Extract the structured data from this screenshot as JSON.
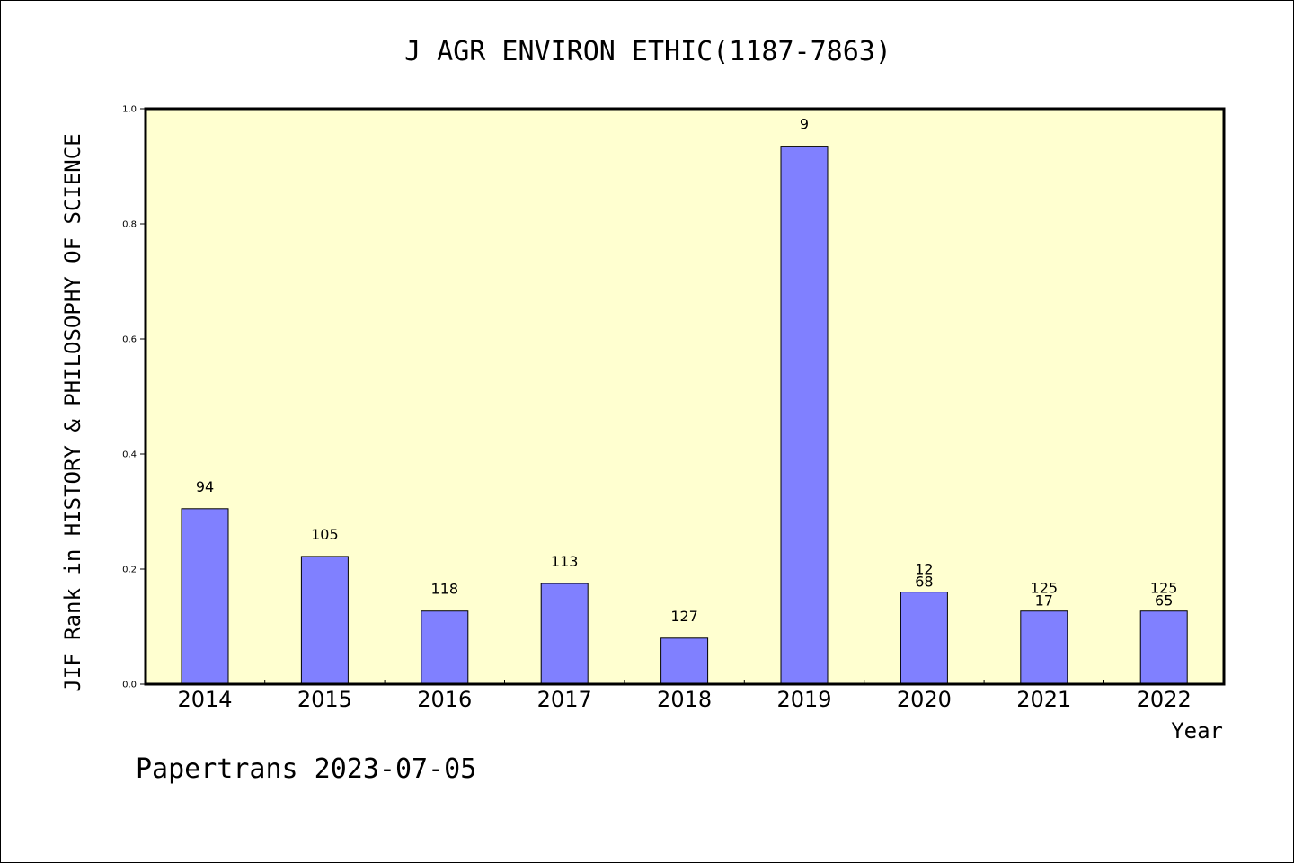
{
  "chart_data": {
    "type": "bar",
    "title": "J AGR ENVIRON ETHIC(1187-7863)",
    "xlabel": "Year",
    "ylabel": "JIF Rank in HISTORY & PHILOSOPHY OF SCIENCE",
    "footer": "Papertrans 2023-07-05",
    "ylim": [
      0,
      1.0
    ],
    "yticks": [
      "0.0",
      "0.2",
      "0.4",
      "0.6",
      "0.8",
      "1.0"
    ],
    "categories": [
      "2014",
      "2015",
      "2016",
      "2017",
      "2018",
      "2019",
      "2020",
      "2021",
      "2022"
    ],
    "values": [
      0.305,
      0.222,
      0.127,
      0.175,
      0.08,
      0.935,
      0.16,
      0.127,
      0.127
    ],
    "bar_labels": [
      [
        "94"
      ],
      [
        "105"
      ],
      [
        "118"
      ],
      [
        "113"
      ],
      [
        "127"
      ],
      [
        "9"
      ],
      [
        "12",
        "68"
      ],
      [
        "125",
        "17"
      ],
      [
        "125",
        "65"
      ]
    ],
    "grid": false,
    "colors": {
      "bar_fill": "#8080ff",
      "plot_background": "#ffffd0",
      "axis": "#000000"
    }
  }
}
